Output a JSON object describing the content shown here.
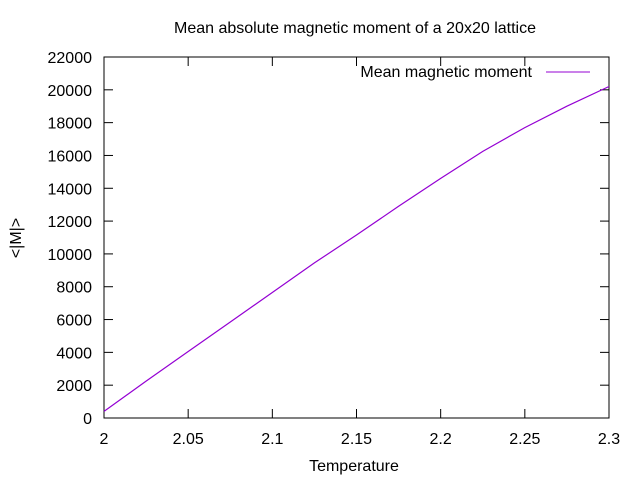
{
  "chart_data": {
    "type": "line",
    "title": "Mean absolute magnetic moment of a 20x20 lattice",
    "xlabel": "Temperature",
    "ylabel": "<|M|>",
    "xlim": [
      2,
      2.3
    ],
    "ylim": [
      0,
      22000
    ],
    "xticks": [
      2,
      2.05,
      2.1,
      2.15,
      2.2,
      2.25,
      2.3
    ],
    "xtick_labels": [
      "2",
      "2.05",
      "2.1",
      "2.15",
      "2.2",
      "2.25",
      "2.3"
    ],
    "yticks": [
      0,
      2000,
      4000,
      6000,
      8000,
      10000,
      12000,
      14000,
      16000,
      18000,
      20000,
      22000
    ],
    "ytick_labels": [
      "0",
      "2000",
      "4000",
      "6000",
      "8000",
      "10000",
      "12000",
      "14000",
      "16000",
      "18000",
      "20000",
      "22000"
    ],
    "grid": false,
    "legend_position": "top-right",
    "series": [
      {
        "name": "Mean magnetic moment",
        "color": "#9400d3",
        "x": [
          2.0,
          2.025,
          2.05,
          2.075,
          2.1,
          2.125,
          2.15,
          2.175,
          2.2,
          2.225,
          2.25,
          2.275,
          2.3
        ],
        "y": [
          400,
          2250,
          4050,
          5850,
          7650,
          9450,
          11150,
          12900,
          14600,
          16250,
          17700,
          19000,
          20200
        ]
      }
    ]
  }
}
